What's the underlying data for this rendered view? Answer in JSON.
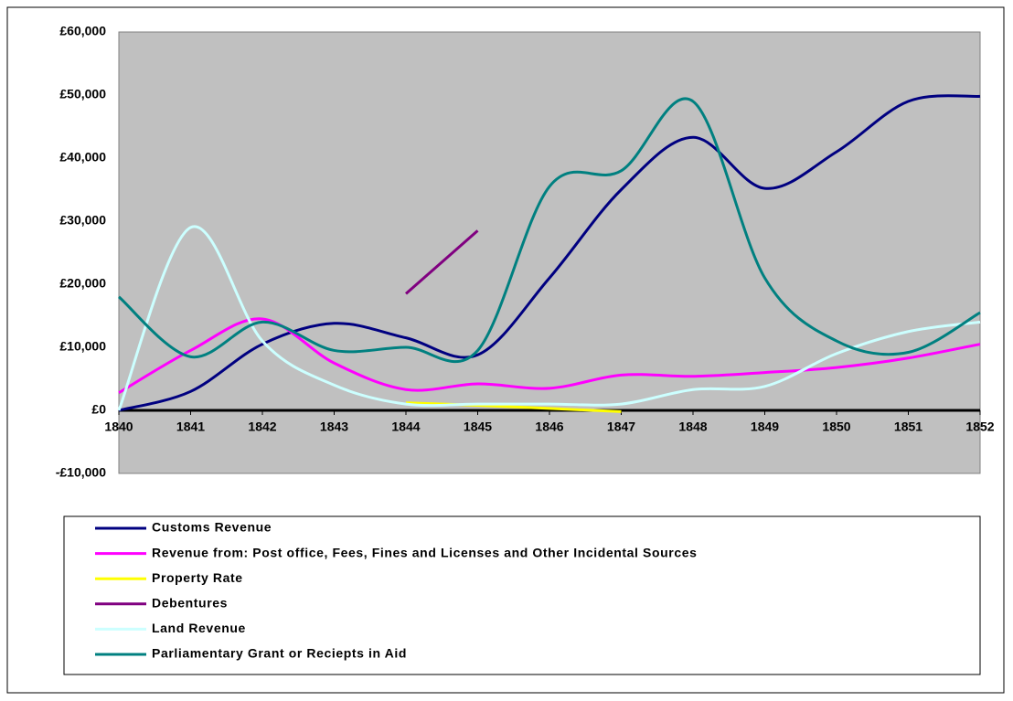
{
  "chart_data": {
    "type": "line",
    "x": [
      1840,
      1841,
      1842,
      1843,
      1844,
      1845,
      1846,
      1847,
      1848,
      1849,
      1850,
      1851,
      1852
    ],
    "xlim": [
      1840,
      1852
    ],
    "xticks": [
      1840,
      1841,
      1842,
      1843,
      1844,
      1845,
      1846,
      1847,
      1848,
      1849,
      1850,
      1851,
      1852
    ],
    "ylim": [
      -10000,
      60000
    ],
    "yticks": [
      {
        "value": -10000,
        "label": "-£10,000"
      },
      {
        "value": 0,
        "label": "£0"
      },
      {
        "value": 10000,
        "label": "£10,000"
      },
      {
        "value": 20000,
        "label": "£20,000"
      },
      {
        "value": 30000,
        "label": "£30,000"
      },
      {
        "value": 40000,
        "label": "£40,000"
      },
      {
        "value": 50000,
        "label": "£50,000"
      },
      {
        "value": 60000,
        "label": "£60,000"
      }
    ],
    "grid": true,
    "legend": "bottom",
    "series": [
      {
        "name": "Customs Revenue",
        "color": "#000080",
        "values": [
          0,
          3000,
          10500,
          13800,
          11500,
          8800,
          21000,
          35000,
          43300,
          35200,
          41000,
          49000,
          49800
        ]
      },
      {
        "name": "Revenue from: Post office, Fees, Fines and Licenses and Other Incidental Sources",
        "color": "#ff00ff",
        "values": [
          2800,
          9500,
          14500,
          7500,
          3300,
          4200,
          3500,
          5600,
          5400,
          6000,
          6800,
          8300,
          10500
        ]
      },
      {
        "name": "Property Rate",
        "color": "#ffff00",
        "values": [
          null,
          null,
          null,
          null,
          1200,
          800,
          300,
          -200,
          null,
          null,
          null,
          null,
          null
        ]
      },
      {
        "name": "Debentures",
        "color": "#800080",
        "values": [
          null,
          null,
          null,
          null,
          18500,
          28500,
          null,
          null,
          null,
          null,
          null,
          null,
          null
        ]
      },
      {
        "name": "Land Revenue",
        "color": "#ccffff",
        "values": [
          0,
          29000,
          11000,
          4000,
          1000,
          1000,
          1000,
          1000,
          3300,
          3800,
          9000,
          12500,
          14000
        ]
      },
      {
        "name": "Parliamentary Grant or Reciepts in Aid",
        "color": "#008080",
        "values": [
          18000,
          8500,
          14000,
          9500,
          10000,
          9500,
          35500,
          38000,
          49000,
          21000,
          11000,
          9200,
          15500
        ]
      }
    ]
  }
}
